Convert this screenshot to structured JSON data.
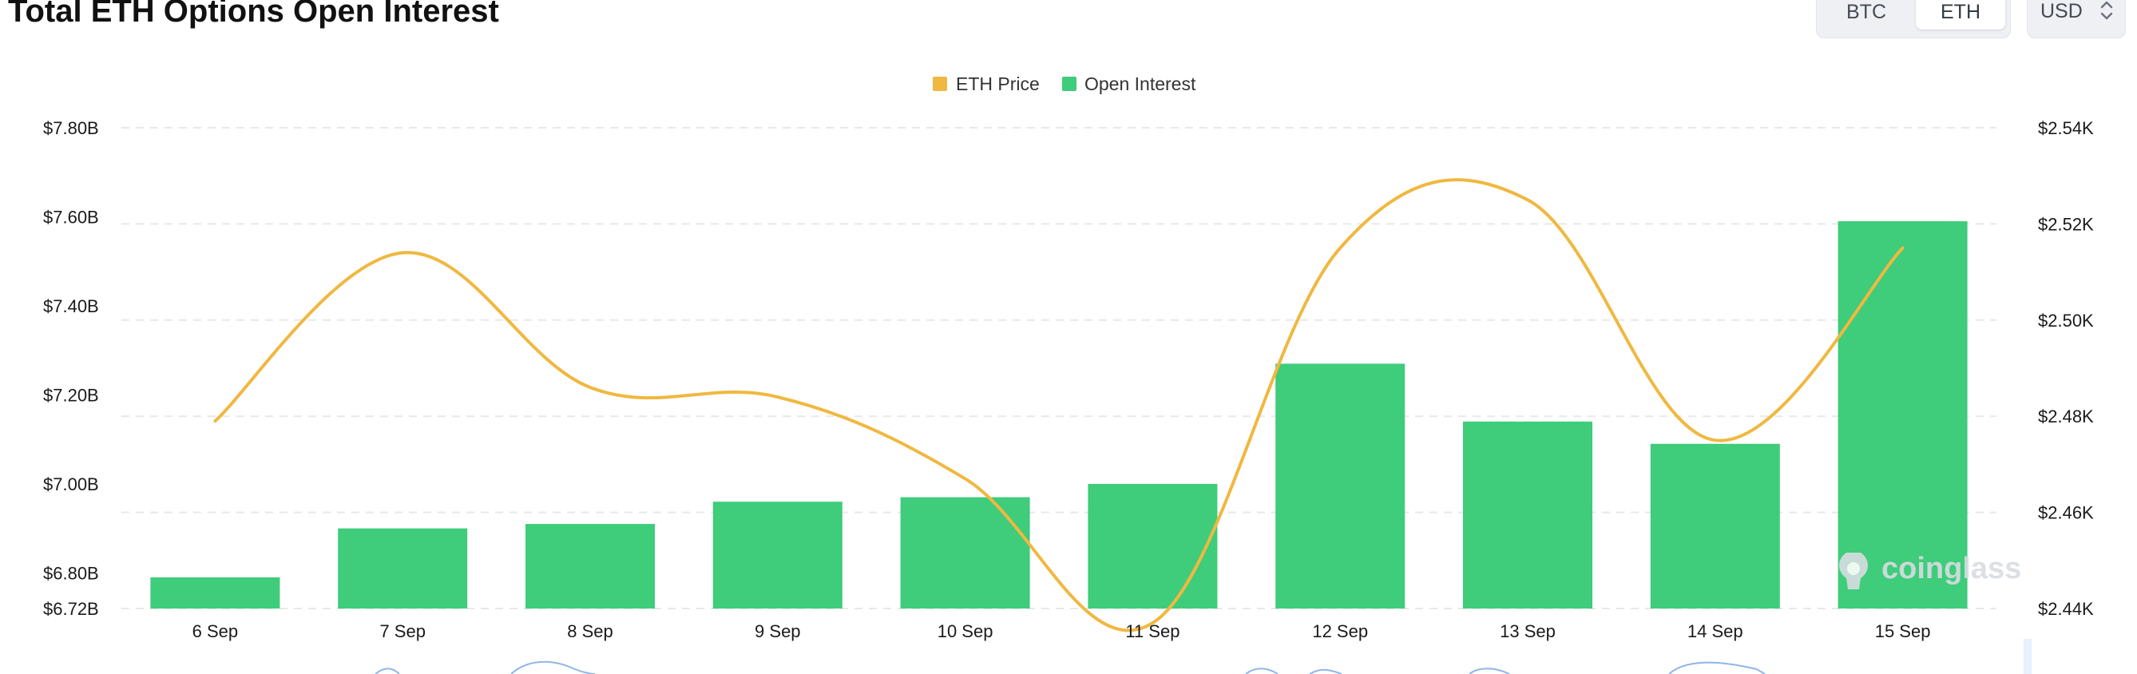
{
  "header": {
    "title": "Total ETH Options Open Interest",
    "toggle_btc": "BTC",
    "toggle_eth": "ETH",
    "currency": "USD",
    "currency_icon": "chevron-up-down-icon"
  },
  "watermark": {
    "text": "coinglass",
    "icon": "coinglass-logo-icon"
  },
  "colors": {
    "price": "#f0b840",
    "open_interest": "#3fcc7b",
    "grid": "#e8e8e8"
  },
  "chart_data": {
    "type": "bar",
    "categories": [
      "6 Sep",
      "7 Sep",
      "8 Sep",
      "9 Sep",
      "10 Sep",
      "11 Sep",
      "12 Sep",
      "13 Sep",
      "14 Sep",
      "15 Sep"
    ],
    "series": [
      {
        "name": "Open Interest",
        "type": "bar",
        "axis": "left",
        "color": "#3fcc7b",
        "values": [
          6.79,
          6.9,
          6.91,
          6.96,
          6.97,
          7.0,
          7.27,
          7.14,
          7.09,
          7.59
        ]
      },
      {
        "name": "ETH Price",
        "type": "line",
        "axis": "right",
        "color": "#f0b840",
        "values": [
          2.479,
          2.514,
          2.486,
          2.484,
          2.467,
          2.437,
          2.515,
          2.525,
          2.475,
          2.515
        ]
      }
    ],
    "legend": [
      "ETH Price",
      "Open Interest"
    ],
    "legend_position": "top-center",
    "y_left": {
      "min": 6.72,
      "max": 7.8,
      "ticks": [
        6.72,
        6.8,
        7.0,
        7.2,
        7.4,
        7.6,
        7.8
      ],
      "tick_labels": [
        "$6.72B",
        "$6.80B",
        "$7.00B",
        "$7.20B",
        "$7.40B",
        "$7.60B",
        "$7.80B"
      ]
    },
    "y_right": {
      "min": 2.44,
      "max": 2.54,
      "ticks": [
        2.44,
        2.46,
        2.48,
        2.5,
        2.52,
        2.54
      ],
      "tick_labels": [
        "$2.44K",
        "$2.46K",
        "$2.48K",
        "$2.50K",
        "$2.52K",
        "$2.54K"
      ]
    },
    "grid": true
  }
}
